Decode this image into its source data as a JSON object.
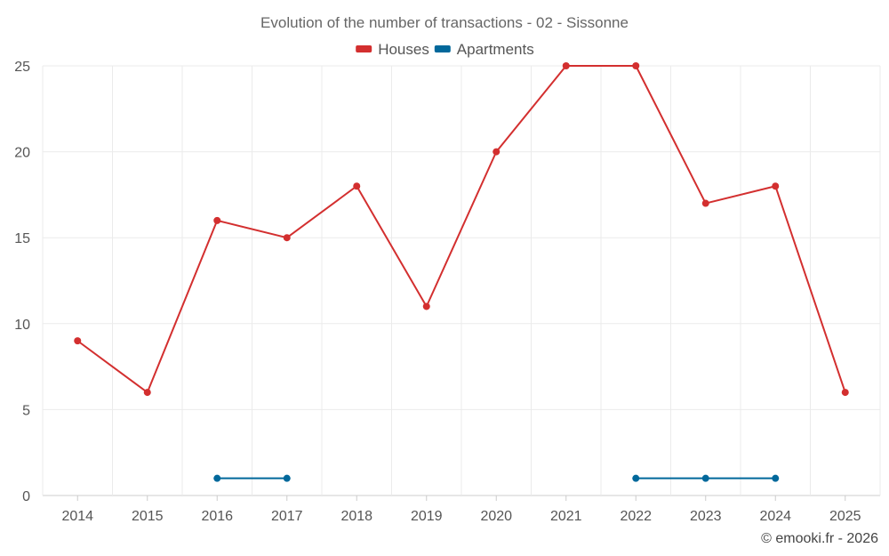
{
  "chart_data": {
    "type": "line",
    "title": "Evolution of the number of transactions - 02 - Sissonne",
    "x": [
      2014,
      2015,
      2016,
      2017,
      2018,
      2019,
      2020,
      2021,
      2022,
      2023,
      2024,
      2025
    ],
    "series": [
      {
        "name": "Houses",
        "color": "#d32f2f",
        "values": [
          9,
          6,
          16,
          15,
          18,
          11,
          20,
          25,
          25,
          17,
          18,
          6
        ]
      },
      {
        "name": "Apartments",
        "color": "#01689b",
        "values": [
          null,
          null,
          1,
          1,
          null,
          null,
          null,
          null,
          1,
          1,
          1,
          null
        ]
      }
    ],
    "yticks": [
      0,
      5,
      10,
      15,
      20,
      25
    ],
    "ylim": [
      0,
      25
    ],
    "grid": true,
    "legend_position": "top-center"
  },
  "credit": "© emooki.fr - 2026"
}
